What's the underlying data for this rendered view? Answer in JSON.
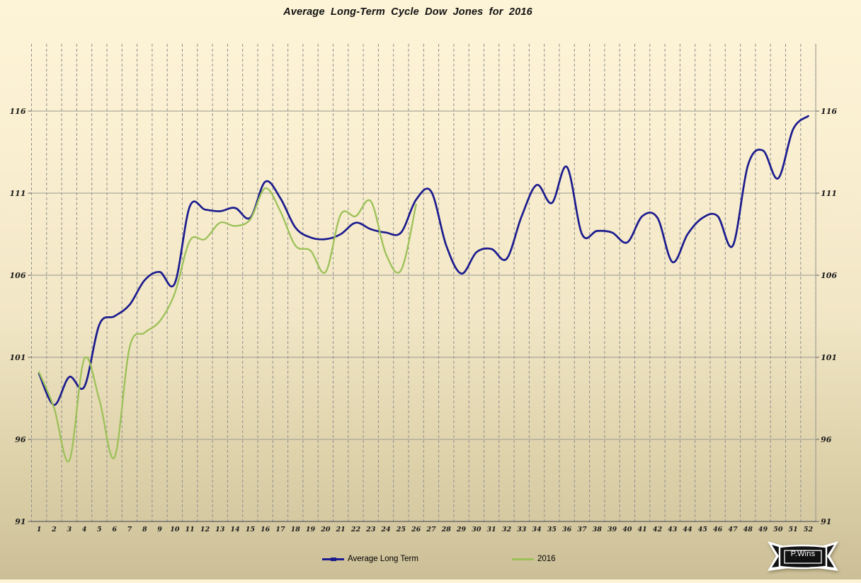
{
  "title": "Average Long-Term  Cycle  Dow Jones for 2016",
  "logo": {
    "text": "P.Wins"
  },
  "legend": {
    "items": [
      {
        "label": "Average Long Term",
        "color": "#1B1B8F"
      },
      {
        "label": "2016",
        "color": "#9CC159"
      }
    ]
  },
  "colors": {
    "navy_series": "#1B1B8F",
    "green_series": "#9CC159",
    "background_top": "#FDF3D7",
    "background_bottom": "#CCBF97",
    "gridline_solid": "#999990",
    "gridline_dashed": "#8E8E8E",
    "axis_line": "#5F5F5F",
    "tick_label": "#1a1a1a"
  },
  "chart_data": {
    "type": "line",
    "title": "Average Long-Term  Cycle  Dow Jones for 2016",
    "xlabel": "",
    "ylabel": "",
    "x": [
      1,
      2,
      3,
      4,
      5,
      6,
      7,
      8,
      9,
      10,
      11,
      12,
      13,
      14,
      15,
      16,
      17,
      18,
      19,
      20,
      21,
      22,
      23,
      24,
      25,
      26,
      27,
      28,
      29,
      30,
      31,
      32,
      33,
      34,
      35,
      36,
      37,
      38,
      39,
      40,
      41,
      42,
      43,
      44,
      45,
      46,
      47,
      48,
      49,
      50,
      51,
      52
    ],
    "xticks": [
      1,
      2,
      3,
      4,
      5,
      6,
      7,
      8,
      9,
      10,
      11,
      12,
      13,
      14,
      15,
      16,
      17,
      18,
      19,
      20,
      21,
      22,
      23,
      24,
      25,
      26,
      27,
      28,
      29,
      30,
      31,
      32,
      33,
      34,
      35,
      36,
      37,
      38,
      39,
      40,
      41,
      42,
      43,
      44,
      45,
      46,
      47,
      48,
      49,
      50,
      51,
      52
    ],
    "yticks": [
      91,
      96,
      101,
      106,
      111,
      116
    ],
    "ylim": [
      91,
      120
    ],
    "grid": {
      "horizontal": "solid",
      "vertical": "dashed"
    },
    "legend_position": "bottom",
    "smooth_lines": true,
    "series": [
      {
        "name": "Average Long Term",
        "color": "#1B1B8F",
        "width": 2.7,
        "values": [
          100.0,
          98.1,
          99.8,
          99.2,
          103.0,
          103.5,
          104.2,
          105.7,
          106.2,
          105.5,
          110.2,
          110.0,
          109.9,
          110.1,
          109.5,
          111.7,
          110.7,
          108.9,
          108.3,
          108.2,
          108.5,
          109.2,
          108.8,
          108.6,
          108.6,
          110.6,
          111.1,
          107.8,
          106.1,
          107.4,
          107.6,
          107.0,
          109.6,
          111.5,
          110.4,
          112.6,
          108.5,
          108.7,
          108.6,
          108.0,
          109.6,
          109.5,
          106.8,
          108.5,
          109.5,
          109.6,
          107.8,
          112.7,
          113.6,
          111.9,
          114.9,
          115.7
        ]
      },
      {
        "name": "2016",
        "color": "#9CC159",
        "width": 2.3,
        "values": [
          100.1,
          97.9,
          94.7,
          100.9,
          98.4,
          94.9,
          101.6,
          102.5,
          103.2,
          104.9,
          108.1,
          108.2,
          109.2,
          109.0,
          109.4,
          111.3,
          109.9,
          107.8,
          107.5,
          106.2,
          109.7,
          109.6,
          110.5,
          107.3,
          106.3,
          110.3
        ]
      }
    ]
  }
}
